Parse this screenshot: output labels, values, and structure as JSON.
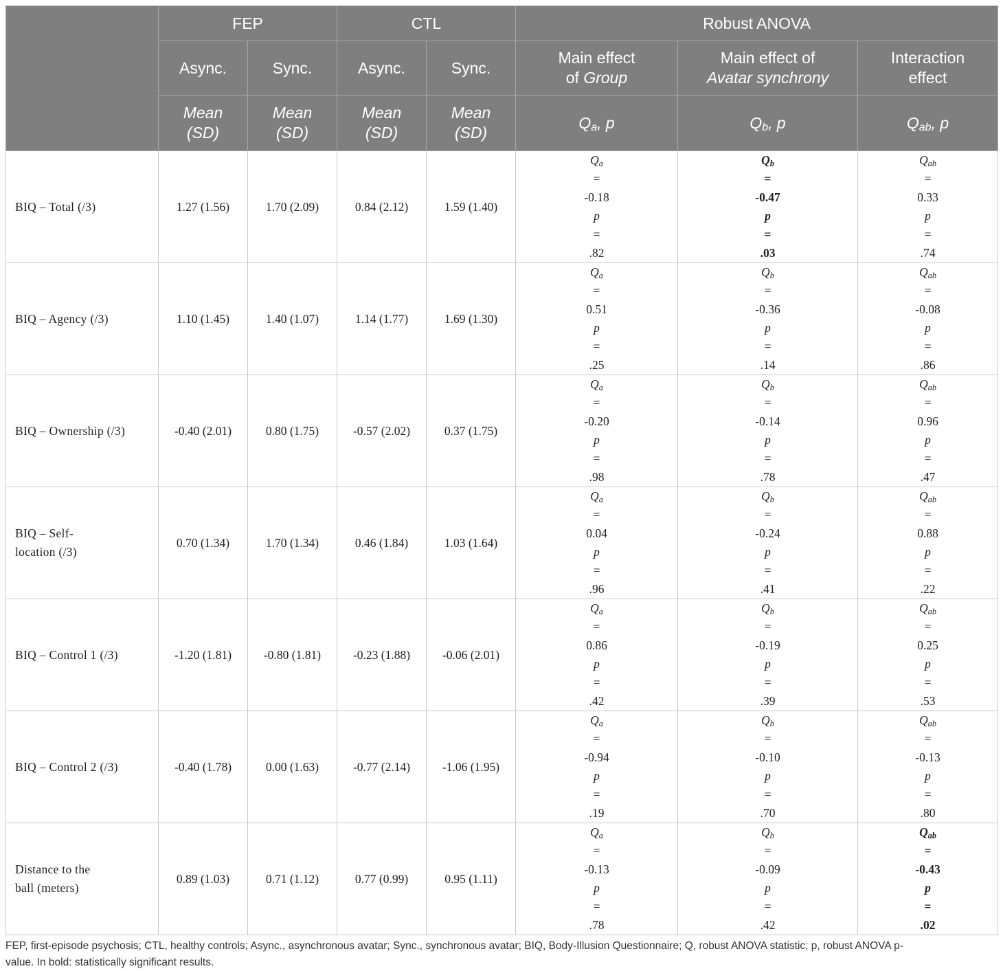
{
  "header": {
    "groups": {
      "fep": "FEP",
      "ctl": "CTL",
      "anova": "Robust ANOVA"
    },
    "conditions": {
      "async": "Async.",
      "sync": "Sync."
    },
    "effects": {
      "group_line1": "Main effect",
      "group_line2_prefix": "of ",
      "group_line2_italic": "Group",
      "sync_line1": "Main effect of",
      "sync_line2_italic": "Avatar synchrony",
      "inter_line1": "Interaction",
      "inter_line2": "effect"
    },
    "stat_labels": {
      "mean": "Mean",
      "sd": "(SD)",
      "qa_q": "Q",
      "qa_sub": "a",
      "qa_tail": ", p",
      "qb_q": "Q",
      "qb_sub": "b",
      "qb_tail": ", p",
      "qab_q": "Q",
      "qab_sub": "ab",
      "qab_tail": ", p"
    }
  },
  "rows": [
    {
      "label1": "BIQ – Total (/3)",
      "label2": "",
      "fep_async": "1.27 (1.56)",
      "fep_sync": "1.70 (2.09)",
      "ctl_async": "0.84 (2.12)",
      "ctl_sync": "1.59 (1.40)",
      "qa": "-0.18",
      "pa": ".82",
      "qb": "-0.47",
      "pb": ".03",
      "qab": "0.33",
      "pab": ".74"
    },
    {
      "label1": "BIQ – Agency (/3)",
      "label2": "",
      "fep_async": "1.10 (1.45)",
      "fep_sync": "1.40 (1.07)",
      "ctl_async": "1.14 (1.77)",
      "ctl_sync": "1.69 (1.30)",
      "qa": "0.51",
      "pa": ".25",
      "qb": "-0.36",
      "pb": ".14",
      "qab": "-0.08",
      "pab": ".86"
    },
    {
      "label1": "BIQ – Ownership (/3)",
      "label2": "",
      "fep_async": "-0.40 (2.01)",
      "fep_sync": "0.80 (1.75)",
      "ctl_async": "-0.57 (2.02)",
      "ctl_sync": "0.37 (1.75)",
      "qa": "-0.20",
      "pa": ".98",
      "qb": "-0.14",
      "pb": ".78",
      "qab": "0.96",
      "pab": ".47"
    },
    {
      "label1": "BIQ – Self-",
      "label2": "location (/3)",
      "fep_async": "0.70 (1.34)",
      "fep_sync": "1.70 (1.34)",
      "ctl_async": "0.46 (1.84)",
      "ctl_sync": "1.03 (1.64)",
      "qa": "0.04",
      "pa": ".96",
      "qb": "-0.24",
      "pb": ".41",
      "qab": "0.88",
      "pab": ".22"
    },
    {
      "label1": "BIQ – Control 1 (/3)",
      "label2": "",
      "fep_async": "-1.20 (1.81)",
      "fep_sync": "-0.80 (1.81)",
      "ctl_async": "-0.23 (1.88)",
      "ctl_sync": "-0.06 (2.01)",
      "qa": "0.86",
      "pa": ".42",
      "qb": "-0.19",
      "pb": ".39",
      "qab": "0.25",
      "pab": ".53"
    },
    {
      "label1": "BIQ – Control 2 (/3)",
      "label2": "",
      "fep_async": "-0.40 (1.78)",
      "fep_sync": "0.00 (1.63)",
      "ctl_async": "-0.77 (2.14)",
      "ctl_sync": "-1.06 (1.95)",
      "qa": "-0.94",
      "pa": ".19",
      "qb": "-0.10",
      "pb": ".70",
      "qab": "-0.13",
      "pab": ".80"
    },
    {
      "label1": "Distance to the",
      "label2": "ball (meters)",
      "fep_async": "0.89 (1.03)",
      "fep_sync": "0.71 (1.12)",
      "ctl_async": "0.77 (0.99)",
      "ctl_sync": "0.95 (1.11)",
      "qa": "-0.13",
      "pa": ".78",
      "qb": "-0.09",
      "pb": ".42",
      "qab": "-0.43",
      "pab": ".02"
    }
  ],
  "eq": " = ",
  "p_letter": "p",
  "footnote": {
    "line1": "FEP, first-episode psychosis; CTL, healthy controls; Async., asynchronous avatar; Sync., synchronous avatar; BIQ, Body-Illusion Questionnaire; Q, robust ANOVA statistic; p, robust ANOVA p-",
    "line2": "value. In bold: statistically significant results."
  }
}
